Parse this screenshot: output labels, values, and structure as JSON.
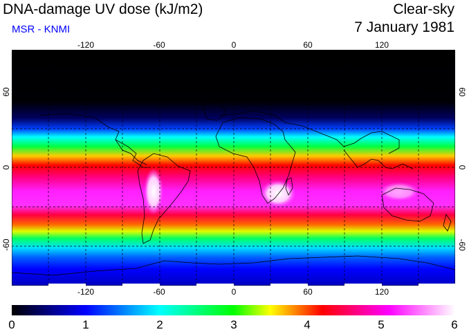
{
  "header": {
    "title": "DNA-damage UV dose (kJ/m2)",
    "subtitle": "MSR - KNMI",
    "sky_condition": "Clear-sky",
    "date": "7 January 1981"
  },
  "map": {
    "lon_range": [
      -180,
      180
    ],
    "lat_range": [
      -90,
      90
    ],
    "lon_ticks": [
      "-120",
      "-60",
      "0",
      "60",
      "120"
    ],
    "lat_ticks": [
      "60",
      "0",
      "-60"
    ],
    "gridlines": "dashed every 30 degrees",
    "colors": {
      "ocean_bands": [
        "#000000",
        "#0000ff",
        "#00ffff",
        "#00ff00",
        "#ffff00",
        "#ff0000",
        "#ff00ff",
        "#ffffff"
      ]
    }
  },
  "colorbar": {
    "min": 0,
    "max": 6,
    "labels": [
      "0",
      "1",
      "2",
      "3",
      "4",
      "5",
      "6"
    ],
    "stops": [
      "#000000",
      "#0000ff",
      "#00ffff",
      "#00ff00",
      "#ffff00",
      "#ff0000",
      "#ff00ff",
      "#ffffff"
    ]
  }
}
